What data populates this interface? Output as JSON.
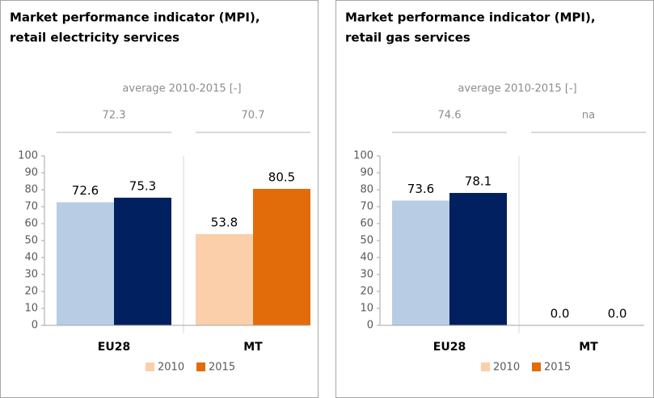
{
  "chart_data": [
    {
      "type": "bar",
      "title": [
        "Market performance indicator (MPI),",
        "retail electricity services"
      ],
      "subtitle": "average 2010-2015 [-]",
      "categories": [
        "EU28",
        "MT"
      ],
      "averages": [
        72.3,
        70.7
      ],
      "series": [
        {
          "name": "2010",
          "color": "#fbcfaa",
          "category_colors": [
            "#b8cce4",
            "#fbcfaa"
          ],
          "values": [
            72.6,
            53.8
          ]
        },
        {
          "name": "2015",
          "color": "#e36c0a",
          "category_colors": [
            "#002060",
            "#e36c0a"
          ],
          "values": [
            75.3,
            80.5
          ]
        }
      ],
      "ylim": [
        0,
        100
      ],
      "yticks": [
        0,
        10,
        20,
        30,
        40,
        50,
        60,
        70,
        80,
        90,
        100
      ]
    },
    {
      "type": "bar",
      "title": [
        "Market performance indicator (MPI),",
        "retail gas services"
      ],
      "subtitle": "average 2010-2015 [-]",
      "categories": [
        "EU28",
        "MT"
      ],
      "averages": [
        74.6,
        "na"
      ],
      "series": [
        {
          "name": "2010",
          "color": "#fbcfaa",
          "category_colors": [
            "#b8cce4",
            "#fbcfaa"
          ],
          "values": [
            73.6,
            0
          ],
          "value_labels": [
            "73.6",
            "0.0"
          ]
        },
        {
          "name": "2015",
          "color": "#e36c0a",
          "category_colors": [
            "#002060",
            "#e36c0a"
          ],
          "values": [
            78.1,
            0
          ],
          "value_labels": [
            "78.1",
            "0.0"
          ]
        }
      ],
      "ylim": [
        0,
        100
      ],
      "yticks": [
        0,
        10,
        20,
        30,
        40,
        50,
        60,
        70,
        80,
        90,
        100
      ]
    }
  ]
}
